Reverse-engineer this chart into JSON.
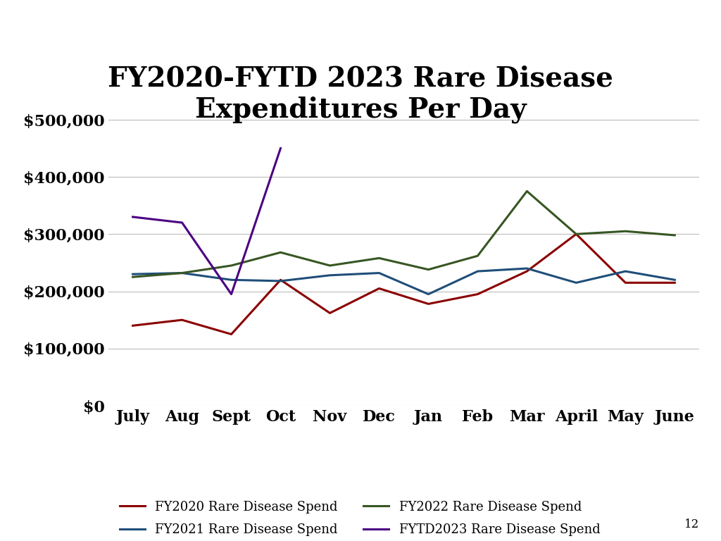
{
  "title": "FY2020-FYTD 2023 Rare Disease\nExpenditures Per Day",
  "months": [
    "July",
    "Aug",
    "Sept",
    "Oct",
    "Nov",
    "Dec",
    "Jan",
    "Feb",
    "Mar",
    "April",
    "May",
    "June"
  ],
  "fy2020": [
    140000,
    150000,
    125000,
    220000,
    162000,
    205000,
    178000,
    195000,
    235000,
    300000,
    215000,
    215000
  ],
  "fy2021": [
    230000,
    232000,
    220000,
    218000,
    228000,
    232000,
    195000,
    235000,
    240000,
    215000,
    235000,
    220000
  ],
  "fy2022": [
    225000,
    232000,
    245000,
    268000,
    245000,
    258000,
    238000,
    262000,
    375000,
    300000,
    305000,
    298000
  ],
  "fytd2023": [
    330000,
    320000,
    195000,
    450000,
    null,
    null,
    null,
    null,
    null,
    null,
    null,
    null
  ],
  "colors": {
    "fy2020": "#8B0000",
    "fy2021": "#1F4E79",
    "fy2022": "#375623",
    "fytd2023": "#4B0082"
  },
  "legend_labels": {
    "fy2020": "FY2020 Rare Disease Spend",
    "fy2021": "FY2021 Rare Disease Spend",
    "fy2022": "FY2022 Rare Disease Spend",
    "fytd2023": "FYTD2023 Rare Disease Spend"
  },
  "ylim": [
    0,
    520000
  ],
  "yticks": [
    0,
    100000,
    200000,
    300000,
    400000,
    500000
  ],
  "background_color": "#FFFFFF",
  "grid_color": "#BBBBBB",
  "title_fontsize": 28,
  "tick_fontsize": 16,
  "legend_fontsize": 13,
  "page_number": "12"
}
